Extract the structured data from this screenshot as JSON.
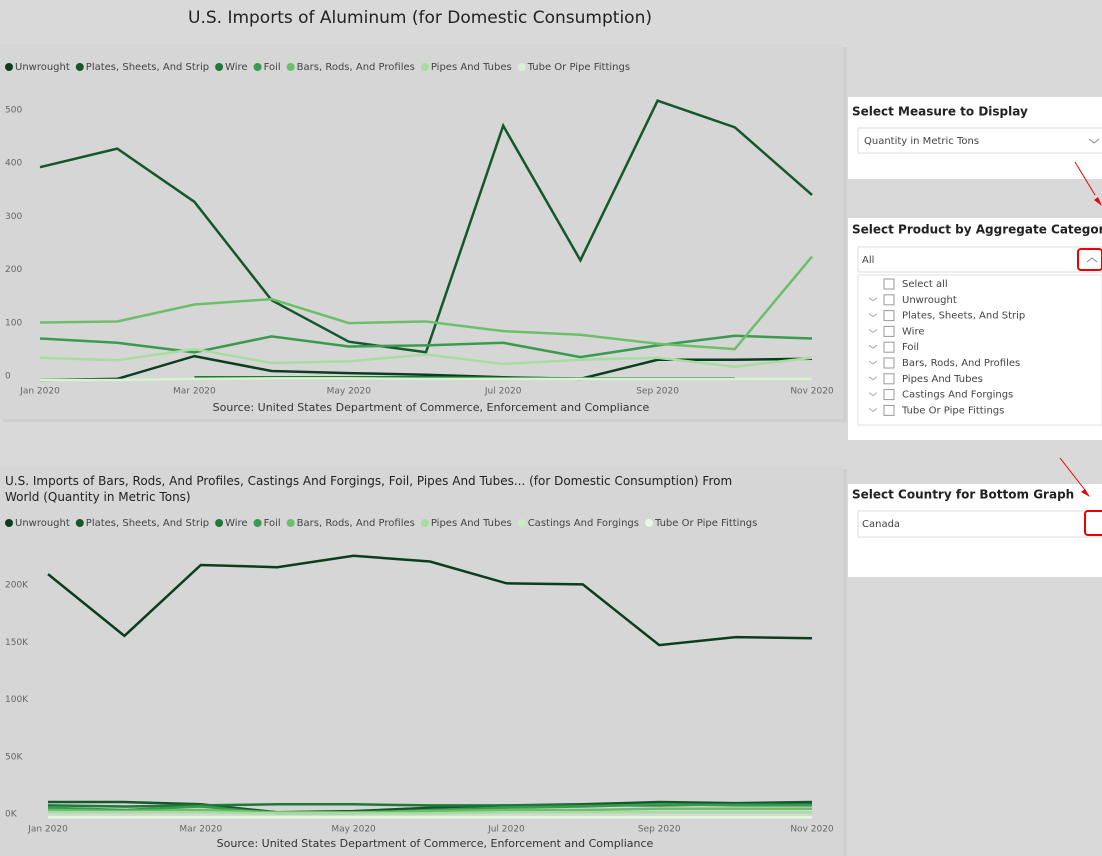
{
  "chart_data": [
    {
      "type": "line",
      "title": "U.S. Imports of Aluminum (for Domestic Consumption)",
      "source": "Source: United States Department of Commerce, Enforcement and Compliance",
      "categories": [
        "Jan 2020",
        null,
        "Mar 2020",
        null,
        "May 2020",
        null,
        "Jul 2020",
        null,
        "Sep 2020",
        null,
        "Nov 2020"
      ],
      "ylim": [
        0,
        530
      ],
      "yticks": [
        0,
        100,
        200,
        300,
        400,
        500
      ],
      "grid": false,
      "legend": "top-left",
      "series": [
        {
          "name": "Unwrought",
          "color": "#0b3d1e",
          "values": [
            0,
            2,
            45,
            17,
            13,
            10,
            5,
            2,
            38,
            38,
            40
          ]
        },
        {
          "name": "Plates, Sheets, And Strip",
          "color": "#14572b",
          "values": [
            400,
            435,
            335,
            150,
            72,
            52,
            478,
            225,
            525,
            475,
            348
          ]
        },
        {
          "name": "Wire",
          "color": "#1f7a3a",
          "values": [
            null,
            null,
            5,
            5,
            5,
            5,
            4,
            3,
            3,
            3,
            null
          ]
        },
        {
          "name": "Foil",
          "color": "#3a9a4f",
          "values": [
            78,
            70,
            52,
            82,
            63,
            65,
            70,
            43,
            65,
            83,
            78
          ]
        },
        {
          "name": "Bars, Rods, And Profiles",
          "color": "#6cbf6a",
          "values": [
            108,
            110,
            142,
            152,
            107,
            110,
            92,
            85,
            68,
            58,
            232
          ]
        },
        {
          "name": "Pipes And Tubes",
          "color": "#a8dca0",
          "values": [
            42,
            37,
            58,
            32,
            35,
            48,
            30,
            38,
            42,
            25,
            42
          ]
        },
        {
          "name": "Tube Or Pipe Fittings",
          "color": "#d6f2d0",
          "values": [
            0,
            0,
            2,
            3,
            3,
            2,
            2,
            2,
            2,
            2,
            2
          ]
        }
      ]
    },
    {
      "type": "line",
      "title": "U.S. Imports of Bars, Rods, And Profiles, Castings And Forgings, Foil, Pipes And Tubes... (for Domestic Consumption) From World (Quantity in Metric Tons)",
      "source": "Source: United States Department of Commerce, Enforcement and Compliance",
      "categories": [
        "Jan 2020",
        null,
        "Mar 2020",
        null,
        "May 2020",
        null,
        "Jul 2020",
        null,
        "Sep 2020",
        null,
        "Nov 2020"
      ],
      "ylim": [
        0,
        240000
      ],
      "yticks": [
        {
          "value": 0,
          "label": "0K"
        },
        {
          "value": 50000,
          "label": "50K"
        },
        {
          "value": 100000,
          "label": "100K"
        },
        {
          "value": 150000,
          "label": "150K"
        },
        {
          "value": 200000,
          "label": "200K"
        }
      ],
      "grid": false,
      "legend": "top-left",
      "series": [
        {
          "name": "Unwrought",
          "color": "#0b3d1e",
          "values": [
            213000,
            159000,
            221000,
            219000,
            229000,
            224000,
            205000,
            204000,
            151000,
            158000,
            157000
          ]
        },
        {
          "name": "Plates, Sheets, And Strip",
          "color": "#14572b",
          "values": [
            14000,
            14000,
            12000,
            5000,
            6000,
            9000,
            11000,
            12000,
            14000,
            13000,
            14000
          ]
        },
        {
          "name": "Wire",
          "color": "#1f7a3a",
          "values": [
            11000,
            10000,
            11000,
            12000,
            12000,
            11000,
            11000,
            11000,
            11000,
            12000,
            12000
          ]
        },
        {
          "name": "Foil",
          "color": "#3a9a4f",
          "values": [
            9000,
            7000,
            10000,
            4000,
            4000,
            7000,
            9000,
            10000,
            12000,
            11000,
            11000
          ]
        },
        {
          "name": "Bars, Rods, And Profiles",
          "color": "#6cbf6a",
          "values": [
            7000,
            6000,
            7000,
            5000,
            5000,
            6000,
            7000,
            7000,
            8000,
            8000,
            8000
          ]
        },
        {
          "name": "Pipes And Tubes",
          "color": "#a8dca0",
          "values": [
            5000,
            5000,
            5000,
            4000,
            4000,
            4000,
            5000,
            5000,
            5000,
            5000,
            5000
          ]
        },
        {
          "name": "Castings And Forgings",
          "color": "#c9ecc2",
          "values": [
            1000,
            1000,
            1000,
            1000,
            1000,
            1000,
            1000,
            1000,
            1000,
            1000,
            1000
          ]
        },
        {
          "name": "Tube Or Pipe Fittings",
          "color": "#e8f7e4",
          "values": [
            500,
            500,
            500,
            500,
            500,
            500,
            500,
            500,
            500,
            500,
            500
          ]
        }
      ]
    }
  ],
  "slicers": {
    "measure": {
      "title": "Select Measure to Display",
      "selected": "Quantity in Metric Tons"
    },
    "product": {
      "title": "Select Product by Aggregate Category",
      "selected": "All",
      "options": [
        "Select all",
        "Unwrought",
        "Plates, Sheets, And Strip",
        "Wire",
        "Foil",
        "Bars, Rods, And Profiles",
        "Pipes And Tubes",
        "Castings And Forgings",
        "Tube Or Pipe Fittings"
      ]
    },
    "country": {
      "title": "Select Country for Bottom Graph",
      "selected": "Canada"
    }
  }
}
